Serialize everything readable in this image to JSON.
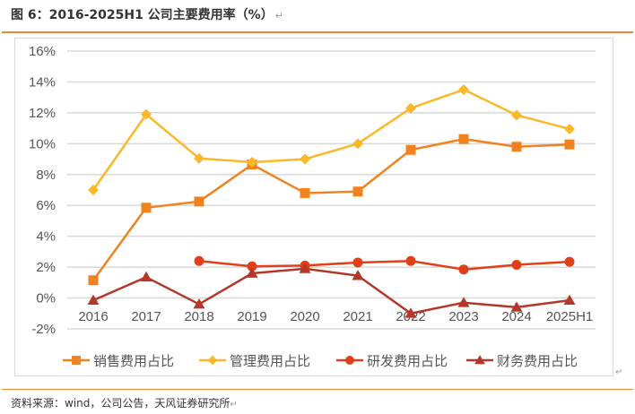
{
  "header": {
    "title": "图 6：2016-2025H1 公司主要费用率（%）",
    "return_mark": "↵"
  },
  "footer": {
    "source": "资料来源：wind，公司公告，天风证券研究所",
    "return_mark": "↵"
  },
  "chart_data": {
    "type": "line",
    "title": "",
    "xlabel": "",
    "ylabel": "",
    "categories": [
      "2016",
      "2017",
      "2018",
      "2019",
      "2020",
      "2021",
      "2022",
      "2023",
      "2024",
      "2025H1"
    ],
    "ylim": [
      -2,
      16
    ],
    "yticks": [
      -2,
      0,
      2,
      4,
      6,
      8,
      10,
      12,
      14,
      16
    ],
    "ytick_labels": [
      "-2%",
      "0%",
      "2%",
      "4%",
      "6%",
      "8%",
      "10%",
      "12%",
      "14%",
      "16%"
    ],
    "grid": true,
    "legend_position": "bottom",
    "series": [
      {
        "name": "销售费用占比",
        "color": "#f0831f",
        "marker": "square",
        "values": [
          1.15,
          5.85,
          6.25,
          8.65,
          6.8,
          6.9,
          9.6,
          10.3,
          9.8,
          9.95
        ]
      },
      {
        "name": "管理费用占比",
        "color": "#fbb829",
        "marker": "diamond",
        "values": [
          7.0,
          11.9,
          9.05,
          8.8,
          9.0,
          10.0,
          12.3,
          13.5,
          11.85,
          10.95
        ]
      },
      {
        "name": "研发费用占比",
        "color": "#e04018",
        "marker": "circle",
        "values": [
          null,
          null,
          2.4,
          2.05,
          2.1,
          2.3,
          2.4,
          1.85,
          2.15,
          2.35
        ]
      },
      {
        "name": "财务费用占比",
        "color": "#b5372a",
        "marker": "triangle",
        "values": [
          -0.15,
          1.35,
          -0.4,
          1.6,
          1.9,
          1.45,
          -1.0,
          -0.3,
          -0.6,
          -0.15
        ]
      }
    ]
  }
}
